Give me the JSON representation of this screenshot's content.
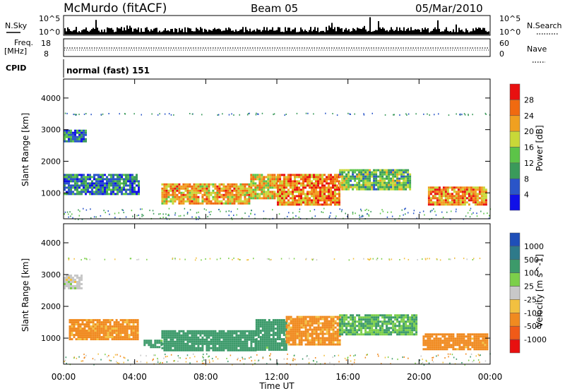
{
  "header": {
    "station": "McMurdo (fitACF)",
    "beam": "Beam 05",
    "date": "05/Mar/2010"
  },
  "top_panels": {
    "nsky_label": "N.Sky",
    "nsearch_label": "N.Search",
    "noise_tick_high": "10^5",
    "noise_tick_low": "10^0",
    "freq_label": "Freq.",
    "freq_unit": "[MHz]",
    "freq_ticks": [
      "18",
      "8"
    ],
    "nave_label": "Nave",
    "nave_ticks": [
      "60",
      "0"
    ],
    "cpid_label": "CPID",
    "cpid_value": "normal (fast) 151"
  },
  "chart_data": [
    {
      "type": "heatmap",
      "name": "power",
      "xlabel": "Time UT",
      "ylabel": "Slant Range [km]",
      "xlim": [
        0,
        24
      ],
      "ylim": [
        180,
        4600
      ],
      "x_ticks": [
        "00:00",
        "04:00",
        "08:00",
        "12:00",
        "16:00",
        "20:00",
        "00:00"
      ],
      "y_ticks": [
        "1000",
        "2000",
        "3000",
        "4000"
      ],
      "colorbar": {
        "label": "Power [dB]",
        "ticks": [
          "4",
          "8",
          "12",
          "16",
          "20",
          "24",
          "28"
        ],
        "colors": [
          "#1010e8",
          "#2a55c8",
          "#3a9a5a",
          "#5cc448",
          "#c8d838",
          "#f0a020",
          "#f06a10",
          "#e81010"
        ]
      },
      "echo_regions": [
        {
          "t": [
            0.0,
            1.2
          ],
          "range": [
            2600,
            3000
          ],
          "power": 8
        },
        {
          "t": [
            0.0,
            4.2
          ],
          "range": [
            950,
            1600
          ],
          "power": 8
        },
        {
          "t": [
            5.5,
            10.5
          ],
          "range": [
            650,
            1300
          ],
          "power": 22
        },
        {
          "t": [
            10.5,
            12.0
          ],
          "range": [
            800,
            1600
          ],
          "power": 20
        },
        {
          "t": [
            12.0,
            15.5
          ],
          "range": [
            650,
            1600
          ],
          "power": 24
        },
        {
          "t": [
            15.5,
            19.5
          ],
          "range": [
            1100,
            1750
          ],
          "power": 14
        },
        {
          "t": [
            20.5,
            23.8
          ],
          "range": [
            650,
            1200
          ],
          "power": 24
        }
      ]
    },
    {
      "type": "heatmap",
      "name": "velocity",
      "xlabel": "Time UT",
      "ylabel": "Slant Range [km]",
      "xlim": [
        0,
        24
      ],
      "ylim": [
        180,
        4600
      ],
      "x_ticks": [
        "00:00",
        "04:00",
        "08:00",
        "12:00",
        "16:00",
        "20:00",
        "00:00"
      ],
      "y_ticks": [
        "1000",
        "2000",
        "3000",
        "4000"
      ],
      "colorbar": {
        "label": "Velocity [m s^-1]",
        "ticks": [
          "1000",
          "500",
          "100",
          "25",
          "-25",
          "-100",
          "-500",
          "-1000"
        ],
        "colors": [
          "#1f4fb8",
          "#2e7a8a",
          "#3c9a6a",
          "#7ccf4a",
          "#c8c8c8",
          "#f2c040",
          "#f08a20",
          "#f05a18",
          "#e81010"
        ]
      },
      "echo_regions": [
        {
          "t": [
            0.0,
            1.0
          ],
          "range": [
            2600,
            3000
          ],
          "velocity": 0
        },
        {
          "t": [
            0.3,
            4.2
          ],
          "range": [
            950,
            1600
          ],
          "velocity": -150
        },
        {
          "t": [
            4.5,
            5.5
          ],
          "range": [
            750,
            950
          ],
          "velocity": 200
        },
        {
          "t": [
            5.5,
            10.8
          ],
          "range": [
            650,
            1250
          ],
          "velocity": 300
        },
        {
          "t": [
            10.8,
            12.5
          ],
          "range": [
            650,
            1600
          ],
          "velocity": 200
        },
        {
          "t": [
            12.5,
            15.5
          ],
          "range": [
            800,
            1700
          ],
          "velocity": -150
        },
        {
          "t": [
            15.5,
            19.8
          ],
          "range": [
            1100,
            1750
          ],
          "velocity": 100
        },
        {
          "t": [
            20.2,
            23.8
          ],
          "range": [
            650,
            1150
          ],
          "velocity": -200
        }
      ]
    }
  ]
}
